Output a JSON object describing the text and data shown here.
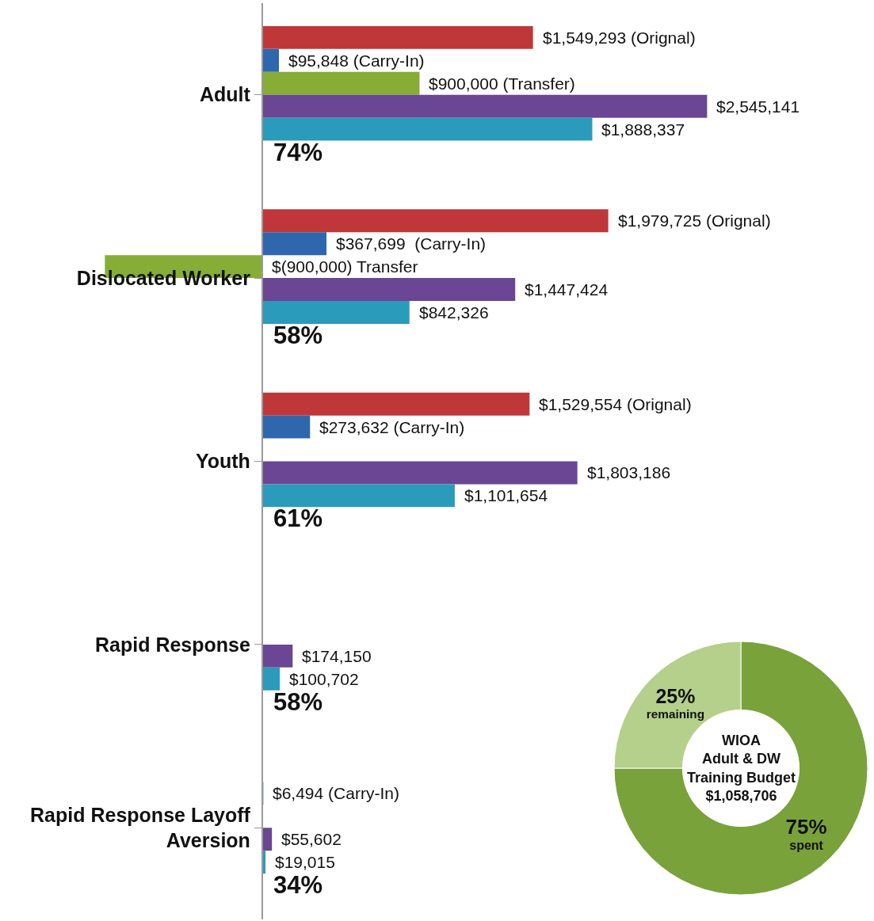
{
  "chart_data": [
    {
      "type": "bar",
      "orientation": "horizontal",
      "tick_labels": "y",
      "xlim": [
        -1500000,
        3500000
      ],
      "categories": [
        "Adult",
        "Dislocated Worker",
        "Youth",
        "Rapid Response",
        "Rapid Response Layoff Aversion"
      ],
      "series": [
        {
          "color": "#c0373a",
          "values": [
            1549293,
            1979725,
            1529554,
            null,
            null
          ],
          "value_labels": [
            "$1,549,293 (Orignal)",
            "$1,979,725 (Orignal)",
            "$1,529,554 (Orignal)",
            null,
            null
          ]
        },
        {
          "color": "#2e67ae",
          "values": [
            95848,
            367699,
            273632,
            null,
            6494
          ],
          "value_labels": [
            "$95,848 (Carry-In)",
            "$367,699  (Carry-In)",
            "$273,632 (Carry-In)",
            null,
            "$6,494 (Carry-In)"
          ]
        },
        {
          "color": "#86ad35",
          "values": [
            900000,
            -900000,
            null,
            null,
            null
          ],
          "value_labels": [
            "$900,000 (Transfer)",
            "$(900,000) Transfer",
            null,
            null,
            null
          ]
        },
        {
          "color": "#6a4694",
          "values": [
            2545141,
            1447424,
            1803186,
            174150,
            55602
          ],
          "value_labels": [
            "$2,545,141",
            "$1,447,424",
            "$1,803,186",
            "$174,150",
            "$55,602"
          ]
        },
        {
          "color": "#2a9bbb",
          "values": [
            1888337,
            842326,
            1101654,
            100702,
            19015
          ],
          "value_labels": [
            "$1,888,337",
            "$842,326",
            "$1,101,654",
            "$100,702",
            "$19,015"
          ]
        }
      ],
      "annotations": [
        "74%",
        "58%",
        "61%",
        "58%",
        "34%"
      ]
    },
    {
      "type": "donut",
      "categories": [
        "spent",
        "remaining"
      ],
      "values": [
        75,
        25
      ],
      "colors": [
        "#7aa23b",
        "#b4d08a"
      ],
      "value_labels": [
        "75%",
        "25%"
      ],
      "data_labels": true,
      "annotations": [
        "WIOA",
        "Adult & DW",
        "Training Budget",
        "$1,058,706"
      ]
    }
  ]
}
